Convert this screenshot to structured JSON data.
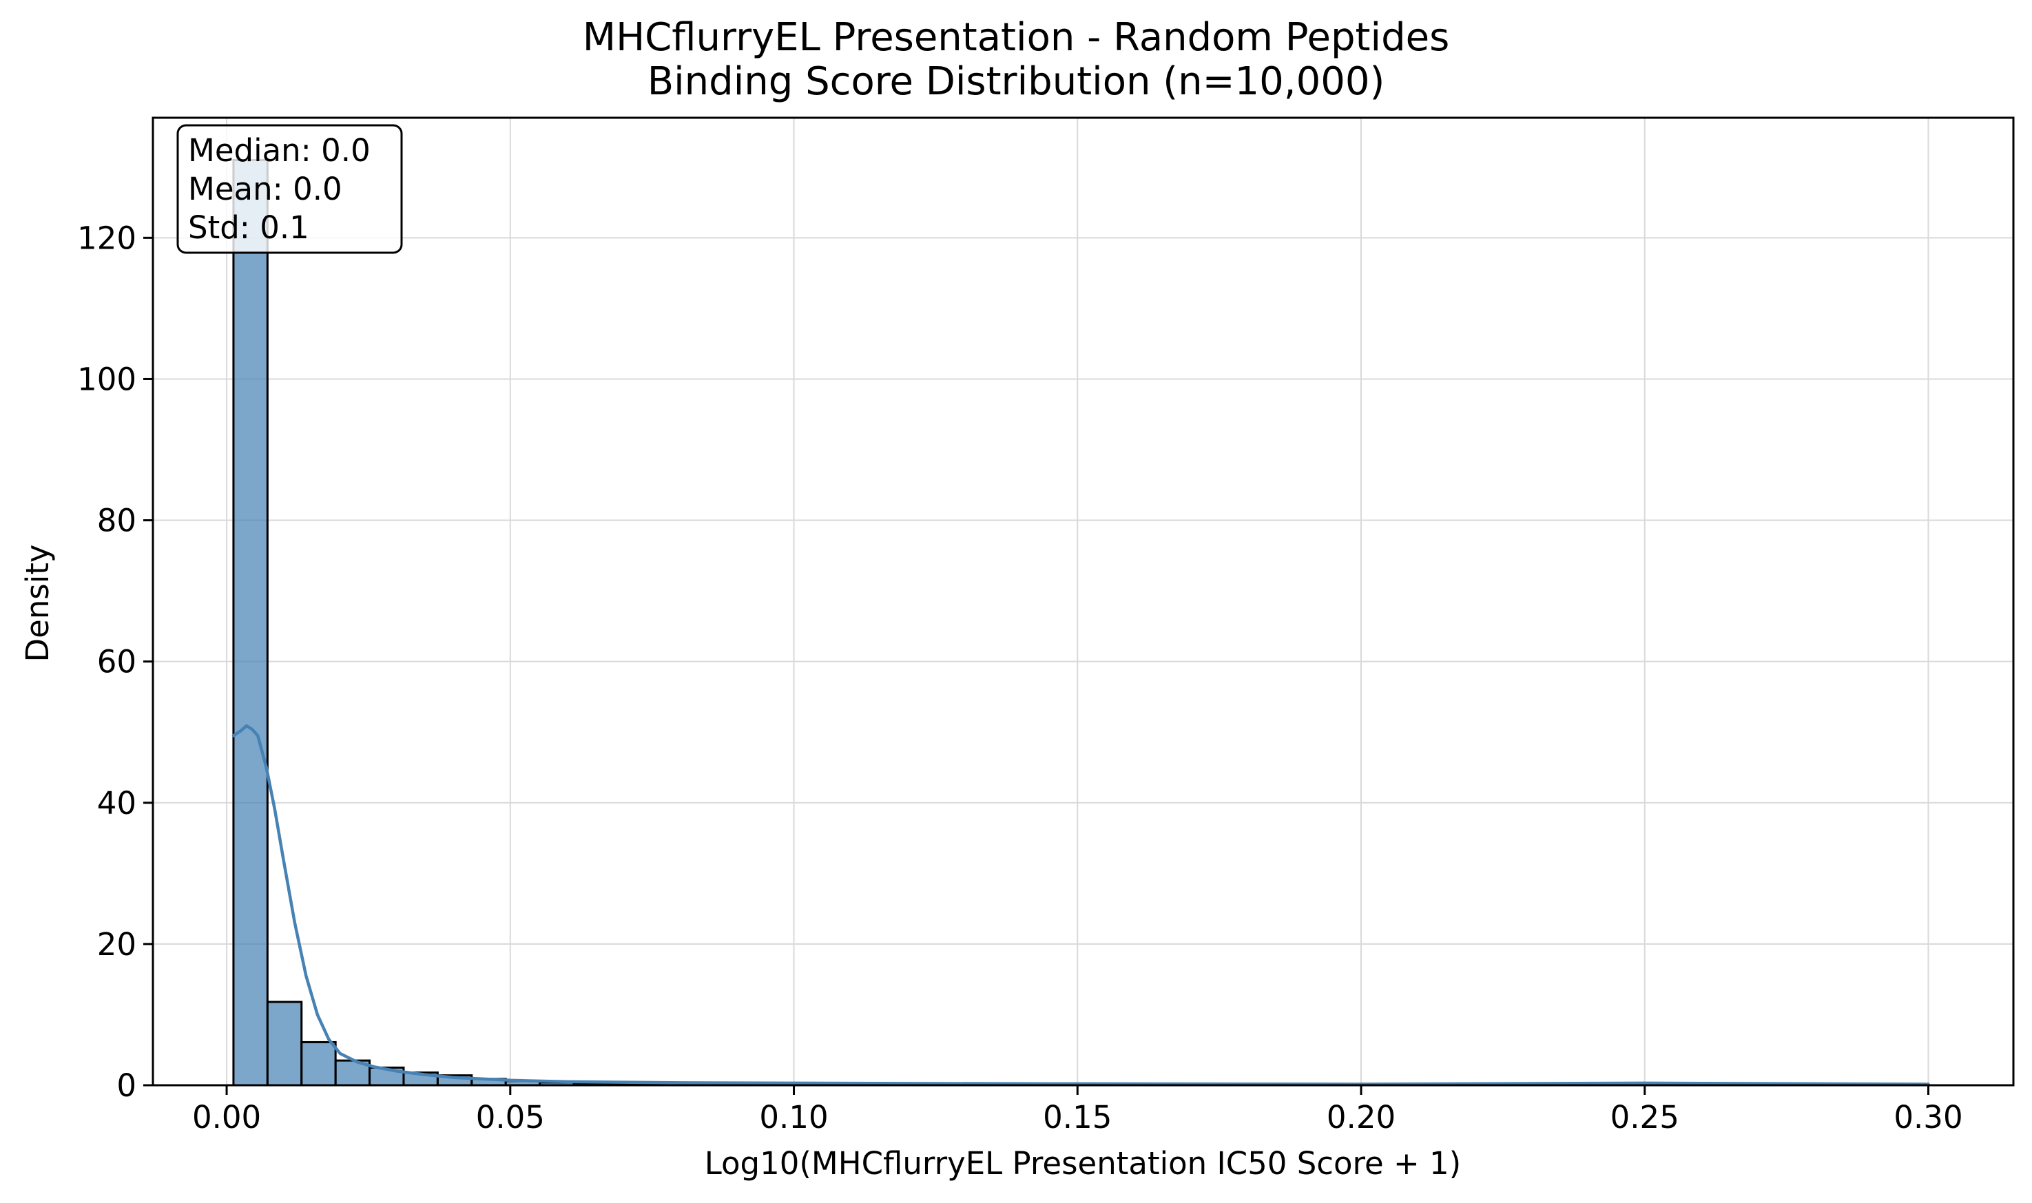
{
  "chart_data": {
    "type": "bar",
    "title": "MHCflurryEL Presentation - Random Peptides",
    "subtitle": "Binding Score Distribution (n=10,000)",
    "xlabel": "Log10(MHCflurryEL Presentation IC50 Score + 1)",
    "ylabel": "Density",
    "xlim": [
      -0.013,
      0.315
    ],
    "ylim": [
      0,
      137
    ],
    "x_ticks": [
      0.0,
      0.05,
      0.1,
      0.15,
      0.2,
      0.25,
      0.3
    ],
    "x_tick_labels": [
      "0.00",
      "0.05",
      "0.10",
      "0.15",
      "0.20",
      "0.25",
      "0.30"
    ],
    "y_ticks": [
      0,
      20,
      40,
      60,
      80,
      100,
      120
    ],
    "y_tick_labels": [
      "0",
      "20",
      "40",
      "60",
      "80",
      "100",
      "120"
    ],
    "grid": true,
    "bin_edges": [
      0.0012,
      0.0072,
      0.0132,
      0.0192,
      0.0252,
      0.0312,
      0.0372,
      0.0432,
      0.0492,
      0.0552,
      0.0612,
      0.0672,
      0.0732,
      0.0792,
      0.0852,
      0.0912,
      0.0972,
      0.1032,
      0.1092,
      0.1152,
      0.1212,
      0.1272,
      0.1332,
      0.1392,
      0.1452,
      0.1512,
      0.1572,
      0.1632,
      0.1692,
      0.1752,
      0.1812,
      0.1872,
      0.1932,
      0.1992,
      0.2052,
      0.2112,
      0.2172,
      0.2232,
      0.2292,
      0.2352,
      0.2412,
      0.2472,
      0.2532,
      0.2592,
      0.2652,
      0.2712,
      0.2772,
      0.2832,
      0.2892,
      0.2952,
      0.2992
    ],
    "bin_values": [
      131,
      11.8,
      6.1,
      3.5,
      2.5,
      1.8,
      1.4,
      0.9,
      0.6,
      0.4,
      0.3,
      0.2,
      0.2,
      0.3,
      0.2,
      0.1,
      0.1,
      0.1,
      0.2,
      0.1,
      0.1,
      0.1,
      0.1,
      0.1,
      0.1,
      0.1,
      0.1,
      0.1,
      0.1,
      0.2,
      0.1,
      0.1,
      0.1,
      0.1,
      0.1,
      0.1,
      0.1,
      0.1,
      0.1,
      0.1,
      0.1,
      0.1,
      0.3,
      0.1,
      0.1,
      0.1,
      0.1,
      0.1,
      0.1,
      0.1
    ],
    "kde": {
      "x": [
        0.0012,
        0.0025,
        0.0035,
        0.0045,
        0.0055,
        0.007,
        0.0085,
        0.01,
        0.012,
        0.014,
        0.016,
        0.018,
        0.02,
        0.023,
        0.026,
        0.03,
        0.035,
        0.04,
        0.05,
        0.06,
        0.08,
        0.1,
        0.12,
        0.15,
        0.2,
        0.25,
        0.3
      ],
      "y": [
        49.5,
        50.2,
        50.9,
        50.4,
        49.5,
        45,
        39,
        32,
        23,
        15.5,
        10,
        6.5,
        4.5,
        3.3,
        2.6,
        2,
        1.5,
        1.1,
        0.7,
        0.5,
        0.35,
        0.3,
        0.25,
        0.2,
        0.15,
        0.3,
        0.15
      ]
    },
    "bar_color": "#4682b4",
    "line_color": "#4682b4",
    "stats_box": {
      "lines": [
        "Median: 0.0",
        "Mean: 0.0",
        "Std: 0.1"
      ],
      "placement": "top-left"
    }
  }
}
